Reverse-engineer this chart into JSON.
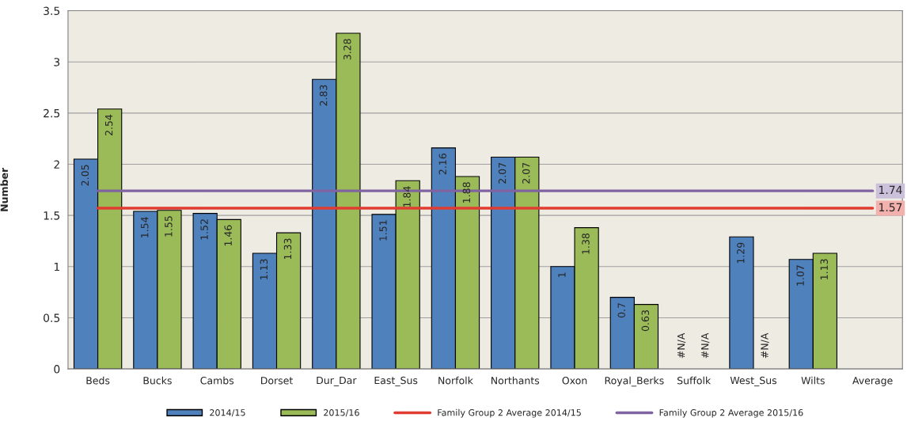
{
  "chart_data": {
    "type": "bar",
    "ylabel": "Number",
    "categories": [
      "Beds",
      "Bucks",
      "Cambs",
      "Dorset",
      "Dur_Dar",
      "East_Sus",
      "Norfolk",
      "Northants",
      "Oxon",
      "Royal_Berks",
      "Suffolk",
      "West_Sus",
      "Wilts",
      "Average"
    ],
    "series": [
      {
        "name": "2014/15",
        "color": "#4f81bd",
        "values": [
          2.05,
          1.54,
          1.52,
          1.13,
          2.83,
          1.51,
          2.16,
          2.07,
          1,
          0.7,
          null,
          1.29,
          1.07,
          null
        ],
        "value_labels": [
          "2.05",
          "1.54",
          "1.52",
          "1.13",
          "2.83",
          "1.51",
          "2.16",
          "2.07",
          "1",
          "0.7",
          "#N/A",
          "1.29",
          "1.07",
          null
        ]
      },
      {
        "name": "2015/16",
        "color": "#9bbb59",
        "values": [
          2.54,
          1.55,
          1.46,
          1.33,
          3.28,
          1.84,
          1.88,
          2.07,
          1.38,
          0.63,
          null,
          null,
          1.13,
          null
        ],
        "value_labels": [
          "2.54",
          "1.55",
          "1.46",
          "1.33",
          "3.28",
          "1.84",
          "1.88",
          "2.07",
          "1.38",
          "0.63",
          "#N/A",
          "#N/A",
          "1.13",
          null
        ]
      },
      {
        "name": "Family Group 2 Average 2014/15",
        "type": "line",
        "color": "#e03c31",
        "values": [
          1.57,
          1.57,
          1.57,
          1.57,
          1.57,
          1.57,
          1.57,
          1.57,
          1.57,
          1.57,
          1.57,
          1.57,
          1.57,
          1.57
        ],
        "value_labels": [
          null,
          null,
          null,
          null,
          null,
          null,
          null,
          null,
          null,
          null,
          null,
          null,
          null,
          "1.57"
        ]
      },
      {
        "name": "Family Group 2 Average 2015/16",
        "type": "line",
        "color": "#8064a2",
        "values": [
          1.74,
          1.74,
          1.74,
          1.74,
          1.74,
          1.74,
          1.74,
          1.74,
          1.74,
          1.74,
          1.74,
          1.74,
          1.74,
          1.74
        ],
        "value_labels": [
          null,
          null,
          null,
          null,
          null,
          null,
          null,
          null,
          null,
          null,
          null,
          null,
          null,
          "1.74"
        ]
      }
    ],
    "ylim": [
      0,
      3.5
    ],
    "yticks": [
      0,
      0.5,
      1,
      1.5,
      2,
      2.5,
      3,
      3.5
    ],
    "grid": "y",
    "legend": "bottom"
  }
}
